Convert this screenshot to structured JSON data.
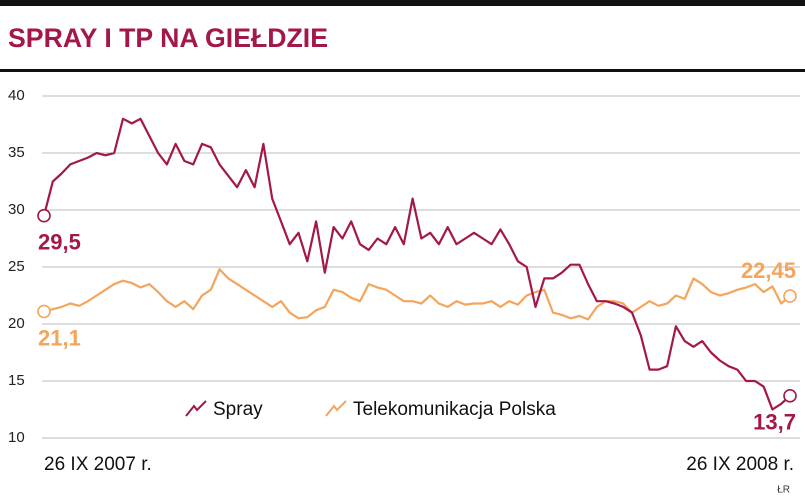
{
  "chart_data": {
    "type": "line",
    "title": "SPRAY I TP NA GIEŁDZIE",
    "credit": "ŁR",
    "categories": [
      "26 IX 2007 r.",
      null,
      null,
      null,
      null,
      null,
      null,
      null,
      null,
      null,
      null,
      null,
      null,
      null,
      null,
      null,
      null,
      null,
      null,
      null,
      null,
      null,
      null,
      null,
      null,
      null,
      null,
      null,
      null,
      null,
      null,
      null,
      null,
      null,
      null,
      null,
      null,
      null,
      null,
      null,
      null,
      null,
      null,
      null,
      null,
      null,
      null,
      null,
      null,
      null,
      null,
      null,
      null,
      null,
      null,
      null,
      null,
      null,
      null,
      null,
      null,
      null,
      null,
      null,
      null,
      null,
      null,
      null,
      null,
      null,
      null,
      null,
      null,
      null,
      null,
      null,
      null,
      null,
      null,
      null,
      null,
      null,
      null,
      null,
      null,
      "26 IX 2008 r."
    ],
    "series": [
      {
        "name": "Spray",
        "color": "#a3174b",
        "values": [
          29.5,
          32.5,
          33.2,
          34,
          34.3,
          34.6,
          35,
          34.8,
          35,
          38,
          37.6,
          38,
          36.5,
          35,
          34,
          35.8,
          34.3,
          34,
          35.8,
          35.5,
          34,
          33,
          32,
          33.5,
          32,
          35.8,
          31,
          29,
          27,
          28,
          25.5,
          29,
          24.5,
          28.5,
          27.5,
          29,
          27,
          26.5,
          27.5,
          27,
          28.5,
          27,
          31,
          27.5,
          28,
          27,
          28.5,
          27,
          27.5,
          28,
          27.5,
          27,
          28.3,
          27,
          25.5,
          25,
          21.5,
          24,
          24,
          24.5,
          25.2,
          25.2,
          23.5,
          22,
          22,
          21.8,
          21.5,
          21,
          19,
          16,
          16,
          16.3,
          19.8,
          18.5,
          18,
          18.5,
          17.5,
          16.8,
          16.3,
          16,
          15,
          15,
          14.5,
          12.5,
          13,
          13.7
        ],
        "value_labels": [
          "29,5",
          null,
          null,
          null,
          null,
          null,
          null,
          null,
          null,
          null,
          null,
          null,
          null,
          null,
          null,
          null,
          null,
          null,
          null,
          null,
          null,
          null,
          null,
          null,
          null,
          null,
          null,
          null,
          null,
          null,
          null,
          null,
          null,
          null,
          null,
          null,
          null,
          null,
          null,
          null,
          null,
          null,
          null,
          null,
          null,
          null,
          null,
          null,
          null,
          null,
          null,
          null,
          null,
          null,
          null,
          null,
          null,
          null,
          null,
          null,
          null,
          null,
          null,
          null,
          null,
          null,
          null,
          null,
          null,
          null,
          null,
          null,
          null,
          null,
          null,
          null,
          null,
          null,
          null,
          null,
          null,
          null,
          null,
          null,
          null,
          "13,7"
        ]
      },
      {
        "name": "Telekomunikacja Polska",
        "color": "#f4a55c",
        "values": [
          21.1,
          21.3,
          21.5,
          21.8,
          21.6,
          22,
          22.5,
          23,
          23.5,
          23.8,
          23.6,
          23.2,
          23.5,
          22.8,
          22,
          21.5,
          22,
          21.3,
          22.5,
          23,
          24.8,
          24,
          23.5,
          23,
          22.5,
          22,
          21.5,
          22,
          21,
          20.5,
          20.6,
          21.2,
          21.5,
          23,
          22.8,
          22.3,
          22,
          23.5,
          23.2,
          23,
          22.5,
          22,
          22,
          21.8,
          22.5,
          21.8,
          21.5,
          22,
          21.7,
          21.8,
          21.8,
          22,
          21.5,
          22,
          21.7,
          22.5,
          22.8,
          23,
          21,
          20.8,
          20.5,
          20.7,
          20.4,
          21.5,
          22,
          22,
          21.8,
          21,
          21.5,
          22,
          21.6,
          21.8,
          22.5,
          22.2,
          24,
          23.5,
          22.8,
          22.5,
          22.7,
          23,
          23.2,
          23.5,
          22.8,
          23.3,
          21.8,
          22.45
        ],
        "value_labels": [
          "21,1",
          null,
          null,
          null,
          null,
          null,
          null,
          null,
          null,
          null,
          null,
          null,
          null,
          null,
          null,
          null,
          null,
          null,
          null,
          null,
          null,
          null,
          null,
          null,
          null,
          null,
          null,
          null,
          null,
          null,
          null,
          null,
          null,
          null,
          null,
          null,
          null,
          null,
          null,
          null,
          null,
          null,
          null,
          null,
          null,
          null,
          null,
          null,
          null,
          null,
          null,
          null,
          null,
          null,
          null,
          null,
          null,
          null,
          null,
          null,
          null,
          null,
          null,
          null,
          null,
          null,
          null,
          null,
          null,
          null,
          null,
          null,
          null,
          null,
          null,
          null,
          null,
          null,
          null,
          null,
          null,
          null,
          null,
          null,
          null,
          "22,45"
        ]
      }
    ],
    "ylim": [
      10,
      40
    ],
    "yticks": [
      10,
      15,
      20,
      25,
      30,
      35,
      40
    ],
    "grid": true
  }
}
